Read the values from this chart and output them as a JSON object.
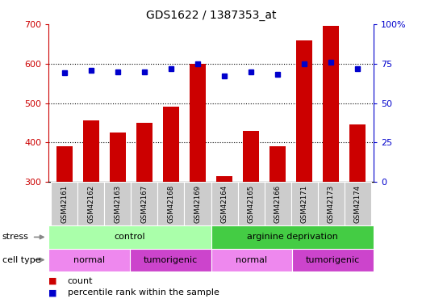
{
  "title": "GDS1622 / 1387353_at",
  "samples": [
    "GSM42161",
    "GSM42162",
    "GSM42163",
    "GSM42167",
    "GSM42168",
    "GSM42169",
    "GSM42164",
    "GSM42165",
    "GSM42166",
    "GSM42171",
    "GSM42173",
    "GSM42174"
  ],
  "counts": [
    390,
    455,
    425,
    450,
    490,
    600,
    315,
    430,
    390,
    660,
    695,
    445
  ],
  "percentile_ranks": [
    69,
    71,
    70,
    70,
    72,
    75,
    67,
    70,
    68,
    75,
    76,
    72
  ],
  "ylim_left": [
    300,
    700
  ],
  "ylim_right": [
    0,
    100
  ],
  "yticks_left": [
    300,
    400,
    500,
    600,
    700
  ],
  "yticks_right": [
    0,
    25,
    50,
    75,
    100
  ],
  "bar_color": "#cc0000",
  "dot_color": "#0000cc",
  "bar_bottom": 300,
  "stress_groups": [
    {
      "label": "control",
      "start": 0,
      "end": 6,
      "color": "#aaffaa"
    },
    {
      "label": "arginine deprivation",
      "start": 6,
      "end": 12,
      "color": "#44cc44"
    }
  ],
  "cell_type_groups": [
    {
      "label": "normal",
      "start": 0,
      "end": 3,
      "color": "#ee88ee"
    },
    {
      "label": "tumorigenic",
      "start": 3,
      "end": 6,
      "color": "#cc44cc"
    },
    {
      "label": "normal",
      "start": 6,
      "end": 9,
      "color": "#ee88ee"
    },
    {
      "label": "tumorigenic",
      "start": 9,
      "end": 12,
      "color": "#cc44cc"
    }
  ],
  "legend_count_color": "#cc0000",
  "legend_pct_color": "#0000cc",
  "left_tick_color": "#cc0000",
  "right_tick_color": "#0000cc",
  "sample_bg_color": "#cccccc",
  "grid_yticks": [
    400,
    500,
    600
  ]
}
